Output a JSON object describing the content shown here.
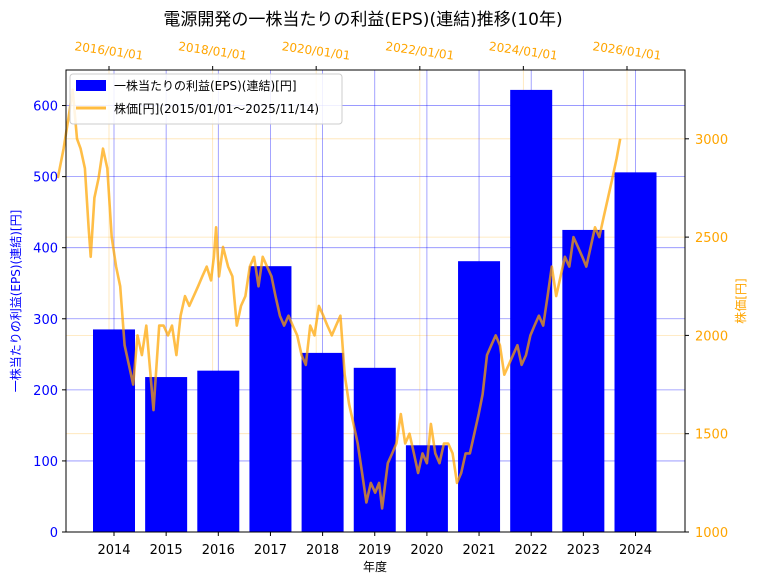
{
  "chart_data": {
    "type": "bar",
    "title": "電源開発の一株当たりの利益(EPS)(連結)推移(10年)",
    "xlabel": "年度",
    "ylabel": "一株当たりの利益(EPS)(連結)[円]",
    "y2label": "株価[円]",
    "categories": [
      "2014",
      "2015",
      "2016",
      "2017",
      "2018",
      "2019",
      "2020",
      "2021",
      "2022",
      "2023",
      "2024"
    ],
    "series": [
      {
        "name": "一株当たりの利益(EPS)(連結)[円]",
        "type": "bar",
        "color": "#0000ff",
        "values": [
          285,
          218,
          227,
          374,
          252,
          231,
          122,
          381,
          622,
          425,
          506
        ]
      },
      {
        "name": "株価[円](2015/01/01～2025/11/14)",
        "type": "line",
        "color": "#ffa500",
        "axis": "right",
        "points": [
          [
            "2015-01-05",
            2800
          ],
          [
            "2015-02-15",
            2950
          ],
          [
            "2015-03-20",
            3100
          ],
          [
            "2015-04-20",
            3250
          ],
          [
            "2015-05-20",
            3000
          ],
          [
            "2015-06-15",
            2950
          ],
          [
            "2015-07-15",
            2850
          ],
          [
            "2015-08-10",
            2550
          ],
          [
            "2015-08-25",
            2400
          ],
          [
            "2015-09-20",
            2700
          ],
          [
            "2015-10-20",
            2800
          ],
          [
            "2015-11-20",
            2950
          ],
          [
            "2015-12-20",
            2850
          ],
          [
            "2016-01-20",
            2500
          ],
          [
            "2016-02-20",
            2350
          ],
          [
            "2016-03-20",
            2250
          ],
          [
            "2016-04-20",
            1950
          ],
          [
            "2016-05-20",
            1850
          ],
          [
            "2016-06-20",
            1750
          ],
          [
            "2016-07-20",
            2000
          ],
          [
            "2016-08-20",
            1900
          ],
          [
            "2016-09-20",
            2050
          ],
          [
            "2016-10-20",
            1800
          ],
          [
            "2016-11-10",
            1620
          ],
          [
            "2016-12-20",
            2050
          ],
          [
            "2017-01-20",
            2050
          ],
          [
            "2017-02-20",
            2000
          ],
          [
            "2017-03-20",
            2050
          ],
          [
            "2017-04-20",
            1900
          ],
          [
            "2017-05-20",
            2100
          ],
          [
            "2017-06-20",
            2200
          ],
          [
            "2017-07-20",
            2150
          ],
          [
            "2017-08-20",
            2200
          ],
          [
            "2017-09-20",
            2250
          ],
          [
            "2017-10-20",
            2300
          ],
          [
            "2017-11-20",
            2350
          ],
          [
            "2017-12-20",
            2280
          ],
          [
            "2018-01-10",
            2400
          ],
          [
            "2018-01-25",
            2550
          ],
          [
            "2018-02-15",
            2300
          ],
          [
            "2018-03-15",
            2450
          ],
          [
            "2018-04-20",
            2350
          ],
          [
            "2018-05-20",
            2300
          ],
          [
            "2018-06-20",
            2050
          ],
          [
            "2018-07-20",
            2150
          ],
          [
            "2018-08-20",
            2200
          ],
          [
            "2018-09-20",
            2350
          ],
          [
            "2018-10-20",
            2400
          ],
          [
            "2018-11-20",
            2250
          ],
          [
            "2018-12-20",
            2400
          ],
          [
            "2019-01-20",
            2350
          ],
          [
            "2019-02-20",
            2300
          ],
          [
            "2019-03-20",
            2200
          ],
          [
            "2019-04-20",
            2100
          ],
          [
            "2019-05-20",
            2050
          ],
          [
            "2019-06-20",
            2100
          ],
          [
            "2019-07-20",
            2050
          ],
          [
            "2019-08-20",
            2000
          ],
          [
            "2019-09-20",
            1900
          ],
          [
            "2019-10-20",
            1850
          ],
          [
            "2019-11-20",
            2050
          ],
          [
            "2019-12-20",
            2000
          ],
          [
            "2020-01-20",
            2150
          ],
          [
            "2020-02-20",
            2100
          ],
          [
            "2020-03-20",
            2050
          ],
          [
            "2020-04-20",
            2000
          ],
          [
            "2020-05-20",
            2050
          ],
          [
            "2020-06-20",
            2100
          ],
          [
            "2020-07-20",
            1800
          ],
          [
            "2020-08-20",
            1650
          ],
          [
            "2020-09-20",
            1550
          ],
          [
            "2020-10-20",
            1450
          ],
          [
            "2020-11-20",
            1300
          ],
          [
            "2020-12-20",
            1150
          ],
          [
            "2021-01-20",
            1250
          ],
          [
            "2021-02-20",
            1200
          ],
          [
            "2021-03-20",
            1250
          ],
          [
            "2021-04-10",
            1120
          ],
          [
            "2021-05-20",
            1350
          ],
          [
            "2021-06-20",
            1400
          ],
          [
            "2021-07-20",
            1450
          ],
          [
            "2021-08-20",
            1600
          ],
          [
            "2021-09-20",
            1450
          ],
          [
            "2021-10-20",
            1500
          ],
          [
            "2021-11-20",
            1400
          ],
          [
            "2021-12-20",
            1300
          ],
          [
            "2022-01-20",
            1400
          ],
          [
            "2022-02-20",
            1350
          ],
          [
            "2022-03-20",
            1550
          ],
          [
            "2022-04-20",
            1400
          ],
          [
            "2022-05-20",
            1350
          ],
          [
            "2022-06-20",
            1450
          ],
          [
            "2022-07-20",
            1450
          ],
          [
            "2022-08-20",
            1400
          ],
          [
            "2022-09-20",
            1250
          ],
          [
            "2022-10-20",
            1300
          ],
          [
            "2022-11-20",
            1400
          ],
          [
            "2022-12-20",
            1400
          ],
          [
            "2023-01-20",
            1500
          ],
          [
            "2023-02-20",
            1600
          ],
          [
            "2023-03-20",
            1700
          ],
          [
            "2023-04-20",
            1900
          ],
          [
            "2023-05-20",
            1950
          ],
          [
            "2023-06-20",
            2000
          ],
          [
            "2023-07-20",
            1950
          ],
          [
            "2023-08-20",
            1800
          ],
          [
            "2023-09-20",
            1850
          ],
          [
            "2023-10-20",
            1900
          ],
          [
            "2023-11-20",
            1950
          ],
          [
            "2023-12-20",
            1850
          ],
          [
            "2024-01-20",
            1900
          ],
          [
            "2024-02-20",
            2000
          ],
          [
            "2024-03-20",
            2050
          ],
          [
            "2024-04-20",
            2100
          ],
          [
            "2024-05-20",
            2050
          ],
          [
            "2024-06-20",
            2200
          ],
          [
            "2024-07-20",
            2350
          ],
          [
            "2024-08-20",
            2200
          ],
          [
            "2024-09-20",
            2300
          ],
          [
            "2024-10-20",
            2400
          ],
          [
            "2024-11-20",
            2350
          ],
          [
            "2024-12-20",
            2500
          ],
          [
            "2025-01-20",
            2450
          ],
          [
            "2025-02-20",
            2400
          ],
          [
            "2025-03-20",
            2350
          ],
          [
            "2025-04-20",
            2450
          ],
          [
            "2025-05-20",
            2550
          ],
          [
            "2025-06-20",
            2500
          ],
          [
            "2025-07-20",
            2600
          ],
          [
            "2025-08-20",
            2700
          ],
          [
            "2025-09-20",
            2800
          ],
          [
            "2025-10-20",
            2900
          ],
          [
            "2025-11-14",
            3000
          ]
        ]
      }
    ],
    "ylim": [
      0,
      650
    ],
    "yticks": [
      "0",
      "100",
      "200",
      "300",
      "400",
      "500",
      "600"
    ],
    "y2lim": [
      1000,
      3350
    ],
    "y2ticks": [
      "1000",
      "1500",
      "2000",
      "2500",
      "3000"
    ],
    "top_axis_dates": [
      "2016/01/01",
      "2018/01/01",
      "2020/01/01",
      "2022/01/01",
      "2024/01/01",
      "2026/01/01"
    ],
    "grid": true,
    "legend_position": "top-left",
    "colors": {
      "bars": "#0000ff",
      "price": "#ffa500",
      "left_axis": "#0000ff",
      "right_axis": "#ffa500"
    }
  }
}
